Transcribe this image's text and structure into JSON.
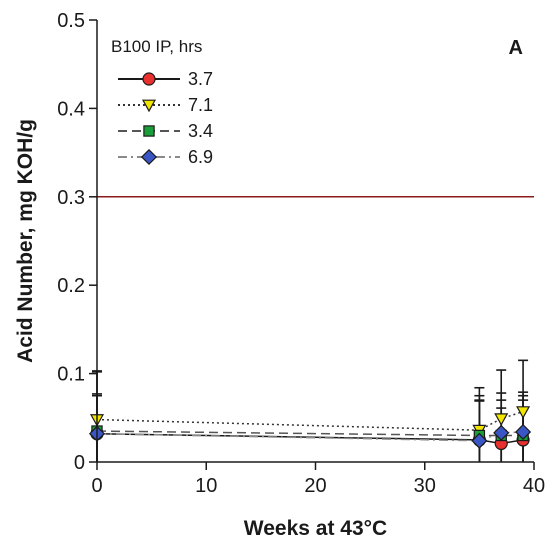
{
  "chart_data": {
    "type": "line",
    "panel_label": "A",
    "xlabel": "Weeks at 43°C",
    "ylabel": "Acid Number, mg KOH/g",
    "xlim": [
      0,
      40
    ],
    "ylim": [
      0,
      0.5
    ],
    "xticks": [
      0,
      10,
      20,
      30,
      40
    ],
    "yticks": [
      0,
      0.1,
      0.2,
      0.3,
      0.4,
      0.5
    ],
    "ytick_labels": [
      "0",
      "0.1",
      "0.2",
      "0.3",
      "0.4",
      "0.5"
    ],
    "grid": false,
    "legend_title": "B100 IP, hrs",
    "legend_position": "top-left",
    "reference_line": {
      "y": 0.3,
      "color": "#8b1a1a"
    },
    "series": [
      {
        "name": "3.7",
        "marker": "circle",
        "marker_color": "#e8312f",
        "line_color": "#1a1a1a",
        "line_style": "solid",
        "x": [
          0,
          35,
          37,
          39
        ],
        "y": [
          0.032,
          0.025,
          0.021,
          0.025
        ],
        "err": [
          0.07,
          0.05,
          0.04,
          0.05
        ]
      },
      {
        "name": "7.1",
        "marker": "triangle-down",
        "marker_color": "#f2e600",
        "line_color": "#333333",
        "line_style": "dotted",
        "x": [
          0,
          35,
          37,
          39
        ],
        "y": [
          0.048,
          0.036,
          0.049,
          0.057
        ],
        "err": [
          0.055,
          0.048,
          0.055,
          0.058
        ]
      },
      {
        "name": "3.4",
        "marker": "square",
        "marker_color": "#1a9e3a",
        "line_color": "#555555",
        "line_style": "dashed",
        "x": [
          0,
          35,
          37,
          39
        ],
        "y": [
          0.035,
          0.03,
          0.03,
          0.03
        ],
        "err": [
          0.04,
          0.04,
          0.04,
          0.04
        ]
      },
      {
        "name": "6.9",
        "marker": "diamond",
        "marker_color": "#3a56c4",
        "line_color": "#8a8a8a",
        "line_style": "dashdot",
        "x": [
          0,
          35,
          37,
          39
        ],
        "y": [
          0.032,
          0.024,
          0.033,
          0.034
        ],
        "err": [
          0.045,
          0.045,
          0.045,
          0.045
        ]
      }
    ]
  }
}
